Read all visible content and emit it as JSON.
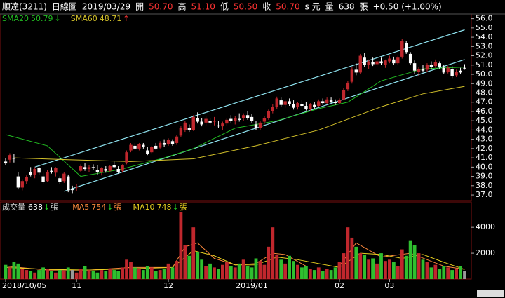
{
  "chart_data": {
    "type": "candlestick",
    "header": [
      {
        "text": "順達(3211)",
        "color": "#ffffff"
      },
      {
        "text": "日線圖",
        "color": "#ffffff"
      },
      {
        "text": "2019/03/29",
        "color": "#ffffff"
      },
      {
        "text": "開",
        "color": "#ffffff"
      },
      {
        "value": 50.7,
        "label": "50.70",
        "color": "#ff3333"
      },
      {
        "text": "高",
        "color": "#ffffff"
      },
      {
        "value": 51.1,
        "label": "51.10",
        "color": "#ff3333"
      },
      {
        "text": "低",
        "color": "#ffffff"
      },
      {
        "value": 50.5,
        "label": "50.50",
        "color": "#ff3333"
      },
      {
        "text": "收",
        "color": "#ffffff"
      },
      {
        "value": 50.7,
        "label": "50.70",
        "color": "#ff3333"
      },
      {
        "text": "s 元",
        "color": "#ffffff"
      },
      {
        "text": "量",
        "color": "#ffffff"
      },
      {
        "value": 638,
        "label": "638",
        "color": "#ffffff"
      },
      {
        "text": "張",
        "color": "#ffffff"
      },
      {
        "text": "+0.50 (+1.00%)",
        "color": "#ffffff"
      }
    ],
    "up_color": "#c0272d",
    "down_color": "#ffffff",
    "vol_up_color": "#c0272d",
    "vol_down_color": "#2fbf2f",
    "candles": [
      [
        40.6,
        41.0,
        40.2,
        40.4
      ],
      [
        40.8,
        41.5,
        40.5,
        41.3
      ],
      [
        41.0,
        41.4,
        40.5,
        40.9
      ],
      [
        39.0,
        39.5,
        37.6,
        37.8
      ],
      [
        37.8,
        38.7,
        37.5,
        38.5
      ],
      [
        38.5,
        39.1,
        38.2,
        38.9
      ],
      [
        39.5,
        40.0,
        39.0,
        39.2
      ],
      [
        39.2,
        40.0,
        38.8,
        39.8
      ],
      [
        39.9,
        40.3,
        39.2,
        39.4
      ],
      [
        39.0,
        39.4,
        38.2,
        38.4
      ],
      [
        38.5,
        39.7,
        38.4,
        39.5
      ],
      [
        39.6,
        40.0,
        39.3,
        39.5
      ],
      [
        39.4,
        40.0,
        39.0,
        39.9
      ],
      [
        38.8,
        39.0,
        38.2,
        38.4
      ],
      [
        38.5,
        39.5,
        38.3,
        39.3
      ],
      [
        39.0,
        39.2,
        37.3,
        37.5
      ],
      [
        37.6,
        38.0,
        37.2,
        37.6
      ],
      [
        37.8,
        38.2,
        37.4,
        37.9
      ],
      [
        39.6,
        40.3,
        39.5,
        40.1
      ],
      [
        40.0,
        40.4,
        39.6,
        39.8
      ],
      [
        39.8,
        40.2,
        39.5,
        40.0
      ],
      [
        40.0,
        40.3,
        39.7,
        39.9
      ],
      [
        39.7,
        40.2,
        39.2,
        39.5
      ],
      [
        39.5,
        40.0,
        39.1,
        39.9
      ],
      [
        39.8,
        40.1,
        39.4,
        39.6
      ],
      [
        39.6,
        40.2,
        39.5,
        40.1
      ],
      [
        40.2,
        40.6,
        39.9,
        40.0
      ],
      [
        39.8,
        40.1,
        39.3,
        39.5
      ],
      [
        39.6,
        40.3,
        39.4,
        40.2
      ],
      [
        40.5,
        41.8,
        40.3,
        41.6
      ],
      [
        41.8,
        42.6,
        41.6,
        42.4
      ],
      [
        42.3,
        42.6,
        41.9,
        42.0
      ],
      [
        42.0,
        42.6,
        41.8,
        42.5
      ],
      [
        42.4,
        42.6,
        42.0,
        42.2
      ],
      [
        41.8,
        42.2,
        41.3,
        41.4
      ],
      [
        41.6,
        42.3,
        41.5,
        42.2
      ],
      [
        42.3,
        42.6,
        41.9,
        42.0
      ],
      [
        42.1,
        42.8,
        42.0,
        42.6
      ],
      [
        42.6,
        43.0,
        42.2,
        42.4
      ],
      [
        42.5,
        43.1,
        42.3,
        42.9
      ],
      [
        42.8,
        43.0,
        42.3,
        42.5
      ],
      [
        42.6,
        43.5,
        42.4,
        43.3
      ],
      [
        43.4,
        44.4,
        43.2,
        44.2
      ],
      [
        44.0,
        45.0,
        43.8,
        44.8
      ],
      [
        44.2,
        44.6,
        43.8,
        44.0
      ],
      [
        44.0,
        45.6,
        43.9,
        45.4
      ],
      [
        45.3,
        45.9,
        44.7,
        44.9
      ],
      [
        44.9,
        45.3,
        44.4,
        44.6
      ],
      [
        44.8,
        45.5,
        44.5,
        45.2
      ],
      [
        45.0,
        45.3,
        44.6,
        44.8
      ],
      [
        44.9,
        45.4,
        44.5,
        45.0
      ],
      [
        44.5,
        45.0,
        44.2,
        44.4
      ],
      [
        44.4,
        44.9,
        44.0,
        44.7
      ],
      [
        44.7,
        45.3,
        44.5,
        45.1
      ],
      [
        45.2,
        45.6,
        44.8,
        45.0
      ],
      [
        45.0,
        45.5,
        44.6,
        45.3
      ],
      [
        45.2,
        45.8,
        44.9,
        45.1
      ],
      [
        45.3,
        45.8,
        45.0,
        45.6
      ],
      [
        45.6,
        46.0,
        45.1,
        45.3
      ],
      [
        45.4,
        45.7,
        44.8,
        45.0
      ],
      [
        44.6,
        45.0,
        44.0,
        44.2
      ],
      [
        44.2,
        45.0,
        44.0,
        44.8
      ],
      [
        44.9,
        45.5,
        44.6,
        45.3
      ],
      [
        45.3,
        46.2,
        45.1,
        46.0
      ],
      [
        46.0,
        46.8,
        45.8,
        46.5
      ],
      [
        46.5,
        47.6,
        46.3,
        47.4
      ],
      [
        47.2,
        47.5,
        46.5,
        46.7
      ],
      [
        46.7,
        47.3,
        46.4,
        47.1
      ],
      [
        47.1,
        47.4,
        46.6,
        46.8
      ],
      [
        46.8,
        47.2,
        46.2,
        46.4
      ],
      [
        46.5,
        47.0,
        46.2,
        46.9
      ],
      [
        46.8,
        47.2,
        46.4,
        46.6
      ],
      [
        46.6,
        47.0,
        46.1,
        46.3
      ],
      [
        46.3,
        46.9,
        46.0,
        46.8
      ],
      [
        46.7,
        47.0,
        46.3,
        46.5
      ],
      [
        46.6,
        47.3,
        46.5,
        47.1
      ],
      [
        47.1,
        47.4,
        46.7,
        46.9
      ],
      [
        46.9,
        47.5,
        46.8,
        47.3
      ],
      [
        47.2,
        47.5,
        46.9,
        47.0
      ],
      [
        47.0,
        47.3,
        46.7,
        46.9
      ],
      [
        46.9,
        47.4,
        46.8,
        47.2
      ],
      [
        47.3,
        48.5,
        47.2,
        48.3
      ],
      [
        48.4,
        49.3,
        48.2,
        49.1
      ],
      [
        49.2,
        50.8,
        49.0,
        50.5
      ],
      [
        50.5,
        51.2,
        49.9,
        50.2
      ],
      [
        50.2,
        52.2,
        50.0,
        52.0
      ],
      [
        51.8,
        52.3,
        50.8,
        51.0
      ],
      [
        51.0,
        51.6,
        50.6,
        51.4
      ],
      [
        51.3,
        51.8,
        50.9,
        51.1
      ],
      [
        51.1,
        51.6,
        50.8,
        51.4
      ],
      [
        51.4,
        51.8,
        51.0,
        51.2
      ],
      [
        51.0,
        51.6,
        50.7,
        51.5
      ],
      [
        51.4,
        52.0,
        51.2,
        51.7
      ],
      [
        51.6,
        51.9,
        51.0,
        51.2
      ],
      [
        51.2,
        52.0,
        51.0,
        51.8
      ],
      [
        51.9,
        53.8,
        51.7,
        53.6
      ],
      [
        53.4,
        53.6,
        52.2,
        52.4
      ],
      [
        52.2,
        52.4,
        51.0,
        51.2
      ],
      [
        51.2,
        51.5,
        50.0,
        50.4
      ],
      [
        50.3,
        50.8,
        49.8,
        50.6
      ],
      [
        50.6,
        51.0,
        50.2,
        50.4
      ],
      [
        50.5,
        51.2,
        50.3,
        51.0
      ],
      [
        51.0,
        51.4,
        50.6,
        50.8
      ],
      [
        50.9,
        51.6,
        50.7,
        51.3
      ],
      [
        51.2,
        51.4,
        50.6,
        50.8
      ],
      [
        50.7,
        51.0,
        50.0,
        50.2
      ],
      [
        50.3,
        50.9,
        50.1,
        50.7
      ],
      [
        50.6,
        50.9,
        49.6,
        49.8
      ],
      [
        49.9,
        50.5,
        49.7,
        50.3
      ],
      [
        50.4,
        50.7,
        50.0,
        50.2
      ],
      [
        50.7,
        51.1,
        50.5,
        50.7
      ]
    ],
    "price": {
      "ylim": [
        36.4,
        56.5
      ],
      "yticks": [
        {
          "value": 37,
          "label": "37.0"
        },
        {
          "value": 38,
          "label": "38.0"
        },
        {
          "value": 39,
          "label": "39.0"
        },
        {
          "value": 40,
          "label": "40.0"
        },
        {
          "value": 41,
          "label": "41.0"
        },
        {
          "value": 42,
          "label": "42.0"
        },
        {
          "value": 43,
          "label": "43.0"
        },
        {
          "value": 44,
          "label": "44.0"
        },
        {
          "value": 45,
          "label": "45.0"
        },
        {
          "value": 46,
          "label": "46.0"
        },
        {
          "value": 47,
          "label": "47.0"
        },
        {
          "value": 48,
          "label": "48.0"
        },
        {
          "value": 49,
          "label": "49.0"
        },
        {
          "value": 50,
          "label": "50.0"
        },
        {
          "value": 51,
          "label": "51.0"
        },
        {
          "value": 52,
          "label": "52.0"
        },
        {
          "value": 53,
          "label": "53.0"
        },
        {
          "value": 54,
          "label": "54.0"
        },
        {
          "value": 55,
          "label": "55.0"
        },
        {
          "value": 56,
          "label": "56.0"
        }
      ],
      "series": [
        {
          "name": "SMA20",
          "color": "#22bb22",
          "arrow": "↓",
          "arrow_color": "#22cc22",
          "x": [
            0,
            10,
            18,
            28,
            38,
            45,
            55,
            65,
            75,
            82,
            90,
            100,
            110
          ],
          "values": [
            43.5,
            42.3,
            39.0,
            39.8,
            41.0,
            42.0,
            44.2,
            45.0,
            46.3,
            47.0,
            49.3,
            50.6,
            50.79
          ]
        },
        {
          "name": "SMA60",
          "color": "#d4c22a",
          "arrow": "↑",
          "arrow_color": "#ff3333",
          "x": [
            2,
            15,
            30,
            45,
            60,
            75,
            90,
            100,
            110
          ],
          "values": [
            41.0,
            40.8,
            40.6,
            40.9,
            42.3,
            44.0,
            46.5,
            47.9,
            48.71
          ]
        }
      ],
      "trendlines": [
        {
          "color": "#8fe3f0",
          "points": [
            [
              7,
              40.0
            ],
            [
              110,
              54.8
            ]
          ]
        },
        {
          "color": "#8fe3f0",
          "points": [
            [
              14,
              37.4
            ],
            [
              110,
              51.6
            ]
          ]
        }
      ]
    },
    "volume": {
      "name": "成交量",
      "unit": "張",
      "arrow": "↓",
      "arrow_color": "#22cc22",
      "ylim": [
        0,
        5960
      ],
      "yticks": [
        2000,
        4000
      ],
      "values": [
        1100,
        900,
        1300,
        1200,
        800,
        700,
        600,
        500,
        700,
        900,
        800,
        600,
        500,
        700,
        600,
        900,
        700,
        500,
        800,
        1000,
        700,
        600,
        500,
        700,
        600,
        800,
        700,
        600,
        900,
        1500,
        1300,
        900,
        800,
        700,
        1000,
        900,
        600,
        700,
        800,
        1200,
        900,
        1400,
        5200,
        2600,
        1800,
        4000,
        2100,
        1500,
        1000,
        1200,
        900,
        800,
        1100,
        1300,
        1000,
        900,
        1200,
        1500,
        1000,
        900,
        1600,
        1400,
        1100,
        2500,
        4000,
        1900,
        1500,
        1200,
        1800,
        1400,
        1100,
        900,
        1000,
        800,
        700,
        900,
        600,
        800,
        700,
        900,
        1300,
        2000,
        4000,
        3200,
        2500,
        2000,
        1900,
        1500,
        1600,
        1200,
        2000,
        1400,
        1500,
        1300,
        1000,
        2300,
        1800,
        3000,
        2600,
        2000,
        1500,
        1300,
        900,
        1100,
        800,
        1000,
        900,
        700,
        800,
        1000,
        638
      ],
      "series": [
        {
          "name": "MA5",
          "color": "#ff8a3d",
          "arrow": "↓",
          "arrow_color": "#22cc22",
          "x": [
            0,
            10,
            20,
            30,
            40,
            43,
            46,
            50,
            55,
            60,
            64,
            67,
            72,
            80,
            84,
            90,
            97,
            105,
            110
          ],
          "values": [
            1000,
            700,
            700,
            900,
            900,
            2500,
            2800,
            1600,
            1100,
            1200,
            2000,
            1900,
            1000,
            1000,
            2800,
            1700,
            2000,
            1000,
            754
          ]
        },
        {
          "name": "MA10",
          "color": "#e8d020",
          "arrow": "↓",
          "arrow_color": "#22cc22",
          "x": [
            0,
            10,
            20,
            30,
            40,
            45,
            50,
            55,
            60,
            65,
            70,
            80,
            85,
            90,
            95,
            100,
            105,
            110
          ],
          "values": [
            900,
            750,
            700,
            800,
            900,
            2200,
            1800,
            1100,
            1100,
            1700,
            1500,
            900,
            2000,
            1900,
            1600,
            1900,
            1300,
            748
          ]
        }
      ]
    },
    "xticks": [
      {
        "value": 0,
        "label": "2018/10/05"
      },
      {
        "value": 17,
        "label": "11"
      },
      {
        "value": 39,
        "label": "12"
      },
      {
        "value": 59,
        "label": "2019/01"
      },
      {
        "value": 80,
        "label": "02"
      },
      {
        "value": 92,
        "label": "03"
      }
    ]
  }
}
